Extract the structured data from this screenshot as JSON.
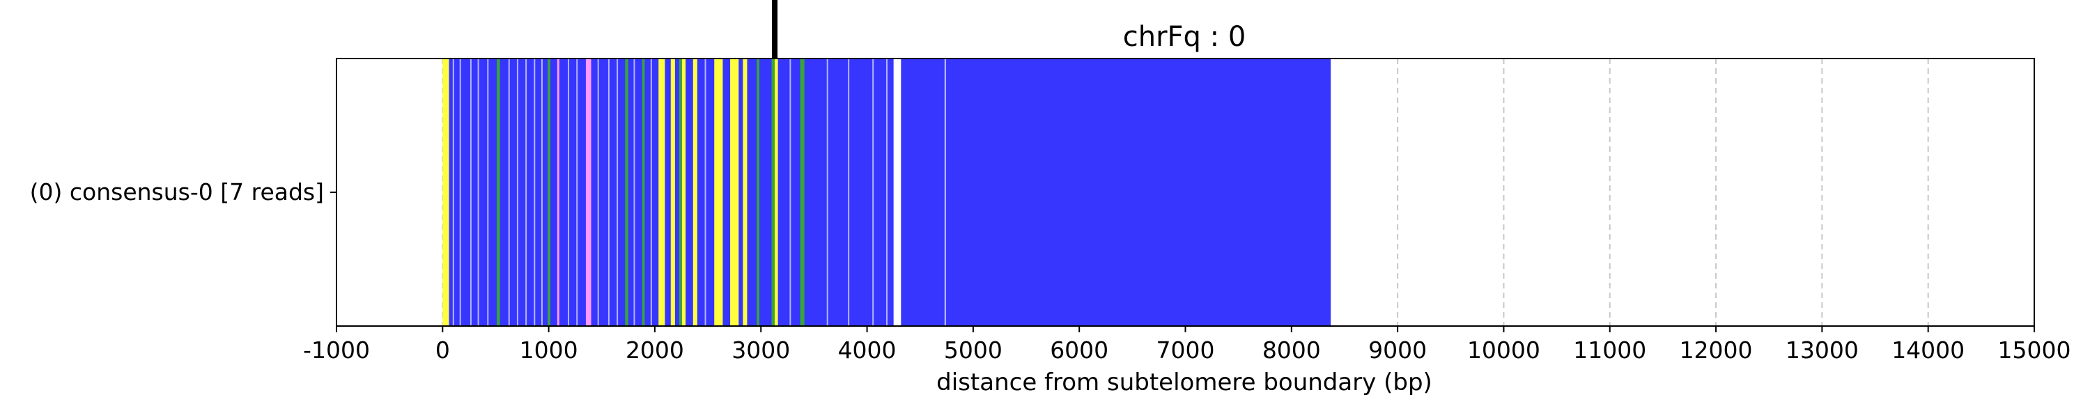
{
  "chart_data": {
    "type": "heatmap",
    "title": "chrFq : 0",
    "xlabel": "distance from subtelomere boundary (bp)",
    "ylabel": "",
    "xlim": [
      -1000,
      15000
    ],
    "xticks": [
      -1000,
      0,
      1000,
      2000,
      3000,
      4000,
      5000,
      6000,
      7000,
      8000,
      9000,
      10000,
      11000,
      12000,
      13000,
      14000,
      15000
    ],
    "xtick_labels": [
      "-1000",
      "0",
      "1000",
      "2000",
      "3000",
      "4000",
      "5000",
      "6000",
      "7000",
      "8000",
      "9000",
      "10000",
      "11000",
      "12000",
      "13000",
      "14000",
      "15000"
    ],
    "grid": "vertical dashed",
    "rows": [
      {
        "label": "(0) consensus-0 [7 reads]"
      }
    ],
    "marker_x": 3130,
    "colors": {
      "blue": "#3636ff",
      "yellow": "#ffff3f",
      "green": "#3aa33a",
      "pink": "#ff99ff",
      "light": "#b4b4ff",
      "gap": "#ffffff",
      "grid": "#c8c8c8"
    },
    "segments": [
      {
        "start": 0,
        "end": 60,
        "color": "yellow"
      },
      {
        "start": 60,
        "end": 8370,
        "color": "blue"
      },
      {
        "start": 4250,
        "end": 4320,
        "color": "gap"
      },
      {
        "start": 2035,
        "end": 2095,
        "color": "yellow"
      },
      {
        "start": 2150,
        "end": 2190,
        "color": "yellow"
      },
      {
        "start": 2255,
        "end": 2290,
        "color": "yellow"
      },
      {
        "start": 2360,
        "end": 2400,
        "color": "yellow"
      },
      {
        "start": 2560,
        "end": 2640,
        "color": "yellow"
      },
      {
        "start": 2710,
        "end": 2790,
        "color": "yellow"
      },
      {
        "start": 2830,
        "end": 2870,
        "color": "yellow"
      },
      {
        "start": 3130,
        "end": 3160,
        "color": "yellow"
      },
      {
        "start": 1350,
        "end": 1400,
        "color": "pink"
      },
      {
        "start": 1080,
        "end": 1100,
        "color": "pink"
      },
      {
        "start": 510,
        "end": 540,
        "color": "green"
      },
      {
        "start": 990,
        "end": 1015,
        "color": "green"
      },
      {
        "start": 1720,
        "end": 1750,
        "color": "green"
      },
      {
        "start": 1880,
        "end": 1905,
        "color": "green"
      },
      {
        "start": 2230,
        "end": 2255,
        "color": "green"
      },
      {
        "start": 2960,
        "end": 2985,
        "color": "green"
      },
      {
        "start": 3100,
        "end": 3130,
        "color": "green"
      },
      {
        "start": 3370,
        "end": 3410,
        "color": "green"
      },
      {
        "start": 95,
        "end": 105,
        "color": "light"
      },
      {
        "start": 160,
        "end": 170,
        "color": "light"
      },
      {
        "start": 260,
        "end": 270,
        "color": "light"
      },
      {
        "start": 330,
        "end": 340,
        "color": "light"
      },
      {
        "start": 420,
        "end": 430,
        "color": "light"
      },
      {
        "start": 620,
        "end": 630,
        "color": "light"
      },
      {
        "start": 700,
        "end": 710,
        "color": "light"
      },
      {
        "start": 780,
        "end": 790,
        "color": "light"
      },
      {
        "start": 860,
        "end": 870,
        "color": "light"
      },
      {
        "start": 930,
        "end": 940,
        "color": "light"
      },
      {
        "start": 1180,
        "end": 1190,
        "color": "light"
      },
      {
        "start": 1260,
        "end": 1270,
        "color": "light"
      },
      {
        "start": 1460,
        "end": 1470,
        "color": "light"
      },
      {
        "start": 1560,
        "end": 1570,
        "color": "light"
      },
      {
        "start": 1640,
        "end": 1650,
        "color": "light"
      },
      {
        "start": 1800,
        "end": 1810,
        "color": "light"
      },
      {
        "start": 1960,
        "end": 1970,
        "color": "light"
      },
      {
        "start": 2470,
        "end": 2480,
        "color": "light"
      },
      {
        "start": 3270,
        "end": 3280,
        "color": "light"
      },
      {
        "start": 3620,
        "end": 3630,
        "color": "light"
      },
      {
        "start": 3820,
        "end": 3830,
        "color": "light"
      },
      {
        "start": 4050,
        "end": 4060,
        "color": "light"
      },
      {
        "start": 4180,
        "end": 4190,
        "color": "light"
      },
      {
        "start": 4730,
        "end": 4745,
        "color": "light"
      }
    ]
  }
}
